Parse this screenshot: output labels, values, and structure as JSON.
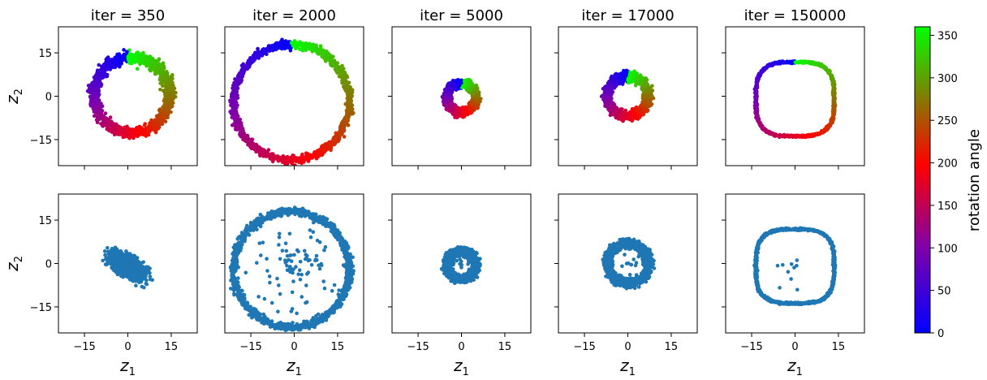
{
  "chart_data": {
    "type": "scatter",
    "columns": [
      "iter = 350",
      "iter = 2000",
      "iter = 5000",
      "iter = 17000",
      "iter = 150000"
    ],
    "rows": [
      "colored by rotation angle",
      "uncolored"
    ],
    "xlabel": "z1",
    "ylabel": "z2",
    "xlim": [
      -24,
      24
    ],
    "ylim": [
      -24,
      24
    ],
    "xticks": [
      -15,
      0,
      15
    ],
    "yticks": [
      -15,
      0,
      15
    ],
    "point_color": "#1f77b4",
    "colorbar": {
      "label": "rotation angle",
      "range": [
        0,
        360
      ],
      "ticks": [
        0,
        50,
        100,
        150,
        200,
        250,
        300,
        350
      ],
      "colors": [
        "#0000ff",
        "#8000aa",
        "#ff0000",
        "#00ff00"
      ]
    },
    "panels": [
      {
        "title": "iter = 350",
        "shape": "blob",
        "center": [
          0,
          -1
        ],
        "radius": 13,
        "spread": 1.3
      },
      {
        "title": "iter = 2000",
        "shape": "ring",
        "center": [
          -1,
          -2
        ],
        "radius": 20,
        "spread": 0.9
      },
      {
        "title": "iter = 5000",
        "shape": "ring",
        "center": [
          0,
          -0.5
        ],
        "radius": 5,
        "spread": 1.0
      },
      {
        "title": "iter = 17000",
        "shape": "ring",
        "center": [
          0,
          0
        ],
        "radius": 7,
        "spread": 1.1
      },
      {
        "title": "iter = 150000",
        "shape": "squircle",
        "center": [
          0,
          -1
        ],
        "radius": 13.5,
        "spread": 0.25
      }
    ]
  }
}
